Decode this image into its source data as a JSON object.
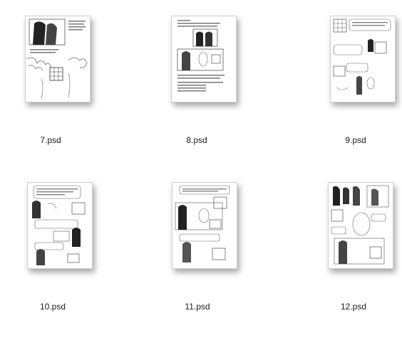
{
  "files": [
    {
      "name": "7.psd"
    },
    {
      "name": "8.psd"
    },
    {
      "name": "9.psd"
    },
    {
      "name": "10.psd"
    },
    {
      "name": "11.psd"
    },
    {
      "name": "12.psd"
    }
  ]
}
